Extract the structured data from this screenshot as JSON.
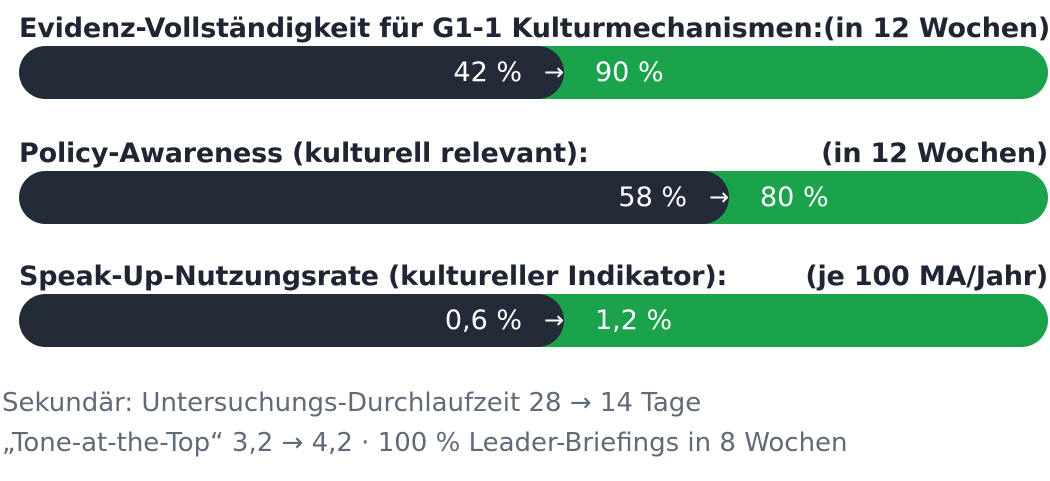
{
  "metrics": [
    {
      "label": "Evidenz-Vollständigkeit für G1-1 Kulturmechanismen:",
      "period": "(in 12 Wochen)",
      "current": "42 %",
      "arrow": "→",
      "target": "90 %",
      "current_fraction": 0.53
    },
    {
      "label": "Policy-Awareness (kulturell relevant):",
      "period": "(in 12 Wochen)",
      "current": "58 %",
      "arrow": "→",
      "target": "80 %",
      "current_fraction": 0.69
    },
    {
      "label": "Speak-Up-Nutzungsrate (kultureller Indikator):",
      "period": "(je 100 MA/Jahr)",
      "current": "0,6 %",
      "arrow": "→",
      "target": "1,2 %",
      "current_fraction": 0.53
    }
  ],
  "notes": {
    "line1": "Sekundär: Untersuchungs-Durchlaufzeit 28 → 14 Tage",
    "line2": "„Tone-at-the-Top“ 3,2 → 4,2 · 100 % Leader-Briefings in 8 Wochen"
  },
  "colors": {
    "dark": "#242b38",
    "green": "#1aa34a",
    "text": "#1f2533",
    "note": "#606a78"
  }
}
